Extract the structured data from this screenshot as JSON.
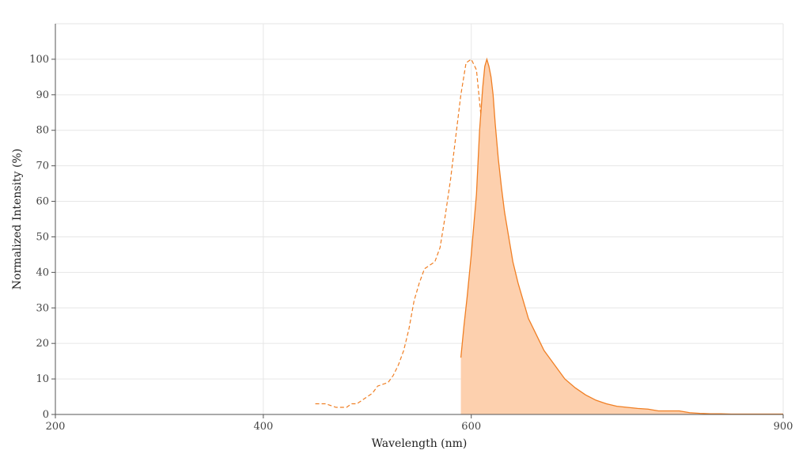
{
  "chart_data": {
    "type": "area",
    "xlabel": "Wavelength (nm)",
    "ylabel": "Normalized Intensity (%)",
    "xlim": [
      200,
      900
    ],
    "ylim": [
      0,
      110
    ],
    "x_ticks": [
      200,
      400,
      600,
      900
    ],
    "y_ticks": [
      0,
      10,
      20,
      30,
      40,
      50,
      60,
      70,
      80,
      90,
      100
    ],
    "grid": true,
    "colors": {
      "line": "#f07f24",
      "fill": "#fdd0ae",
      "grid": "#e6e6e6",
      "axis": "#555555"
    },
    "series": [
      {
        "style": "dashed",
        "x": [
          450,
          460,
          465,
          470,
          475,
          480,
          485,
          490,
          495,
          500,
          505,
          510,
          515,
          520,
          525,
          530,
          535,
          540,
          545,
          550,
          555,
          560,
          565,
          570,
          575,
          580,
          585,
          590,
          595,
          600,
          605,
          610,
          615,
          620,
          625,
          630,
          635,
          640,
          642
        ],
        "y": [
          3,
          3,
          2.5,
          2,
          2,
          2,
          3,
          3,
          4,
          5,
          6,
          8,
          8.5,
          9,
          11,
          14,
          18,
          24,
          32,
          37,
          41,
          42,
          43,
          47,
          56,
          66,
          78,
          90,
          99,
          100,
          97,
          82,
          60,
          35,
          18,
          10,
          6,
          3,
          1
        ]
      },
      {
        "style": "solid-filled",
        "x": [
          590,
          593,
          596,
          600,
          605,
          608,
          611,
          613,
          615,
          617,
          619,
          621,
          623,
          626,
          629,
          632,
          636,
          640,
          645,
          650,
          655,
          660,
          665,
          670,
          675,
          680,
          690,
          700,
          710,
          720,
          730,
          740,
          750,
          760,
          770,
          780,
          790,
          800,
          810,
          820,
          830,
          840,
          850,
          860,
          870,
          880,
          890,
          900
        ],
        "y": [
          16,
          25,
          33,
          45,
          62,
          80,
          92,
          98,
          100,
          98,
          95,
          90,
          82,
          72,
          64,
          57,
          50,
          43,
          37,
          32,
          27,
          24,
          21,
          18,
          16,
          14,
          10,
          7.5,
          5.5,
          4,
          3,
          2.3,
          2,
          1.7,
          1.5,
          1,
          1,
          1,
          0.5,
          0.3,
          0.2,
          0.2,
          0.1,
          0.1,
          0.1,
          0.1,
          0.1,
          0.1
        ]
      }
    ]
  }
}
